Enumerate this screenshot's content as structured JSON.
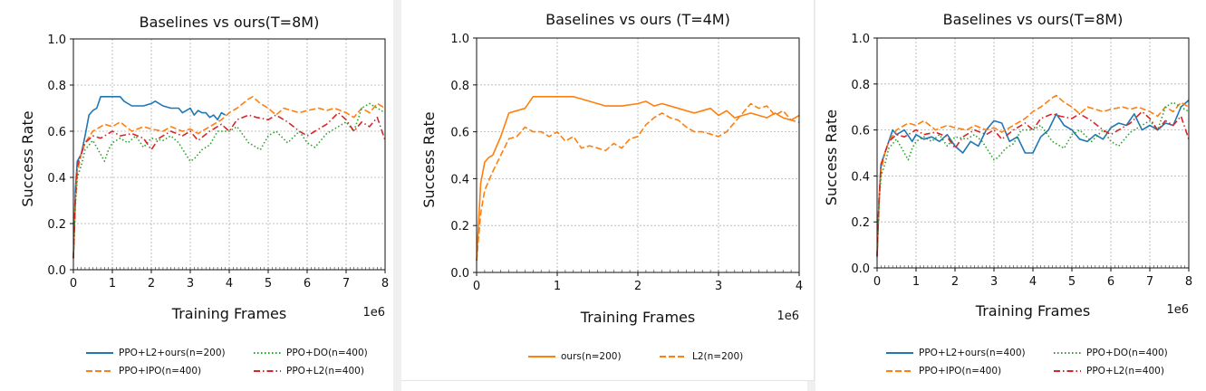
{
  "chart_data": [
    {
      "type": "line",
      "title": "Baselines vs ours(T=8M)",
      "xlabel": "Training Frames",
      "ylabel": "Success Rate",
      "x_exponent": "1e6",
      "xlim": [
        0,
        8
      ],
      "ylim": [
        0,
        1.0
      ],
      "xticks": [
        "0",
        "1",
        "2",
        "3",
        "4",
        "5",
        "6",
        "7",
        "8"
      ],
      "yticks": [
        "0.0",
        "0.2",
        "0.4",
        "0.6",
        "0.8",
        "1.0"
      ],
      "grid": true,
      "legend_position": "bottom",
      "series": [
        {
          "name": "PPO+L2+ours(n=200)",
          "color": "#1f77b4",
          "style": "solid",
          "x": [
            0,
            0.05,
            0.1,
            0.2,
            0.3,
            0.4,
            0.5,
            0.6,
            0.7,
            0.8,
            1.0,
            1.2,
            1.3,
            1.5,
            1.8,
            2.0,
            2.1,
            2.3,
            2.5,
            2.7,
            2.8,
            2.9,
            3.0,
            3.1,
            3.2,
            3.3,
            3.4,
            3.5,
            3.6,
            3.7,
            3.8,
            3.9
          ],
          "y": [
            0.05,
            0.35,
            0.47,
            0.5,
            0.58,
            0.67,
            0.69,
            0.7,
            0.75,
            0.75,
            0.75,
            0.75,
            0.73,
            0.71,
            0.71,
            0.72,
            0.73,
            0.71,
            0.7,
            0.7,
            0.68,
            0.69,
            0.7,
            0.67,
            0.69,
            0.68,
            0.68,
            0.66,
            0.67,
            0.65,
            0.68,
            0.67
          ]
        },
        {
          "name": "PPO+IPO(n=400)",
          "color": "#ff7f0e",
          "style": "dashed",
          "x": [
            0,
            0.05,
            0.1,
            0.2,
            0.3,
            0.5,
            0.7,
            0.8,
            1.0,
            1.2,
            1.5,
            1.8,
            2.0,
            2.3,
            2.5,
            2.8,
            3.0,
            3.2,
            3.5,
            3.8,
            4.0,
            4.2,
            4.5,
            4.6,
            4.8,
            5.0,
            5.2,
            5.4,
            5.6,
            5.8,
            6.0,
            6.3,
            6.5,
            6.7,
            7.0,
            7.2,
            7.4,
            7.6,
            7.8,
            8.0
          ],
          "y": [
            0.05,
            0.3,
            0.42,
            0.5,
            0.55,
            0.6,
            0.62,
            0.63,
            0.62,
            0.64,
            0.6,
            0.62,
            0.61,
            0.6,
            0.62,
            0.6,
            0.61,
            0.59,
            0.62,
            0.65,
            0.68,
            0.7,
            0.74,
            0.75,
            0.72,
            0.7,
            0.67,
            0.7,
            0.69,
            0.68,
            0.69,
            0.7,
            0.69,
            0.7,
            0.68,
            0.66,
            0.7,
            0.68,
            0.72,
            0.7
          ]
        },
        {
          "name": "PPO+DO(n=400)",
          "color": "#2ca02c",
          "style": "dotted",
          "x": [
            0,
            0.05,
            0.1,
            0.2,
            0.3,
            0.5,
            0.7,
            0.8,
            0.9,
            1.0,
            1.2,
            1.4,
            1.6,
            1.8,
            2.0,
            2.3,
            2.5,
            2.7,
            3.0,
            3.1,
            3.3,
            3.5,
            3.7,
            4.0,
            4.2,
            4.5,
            4.8,
            5.0,
            5.2,
            5.5,
            5.8,
            6.0,
            6.2,
            6.5,
            6.8,
            7.0,
            7.2,
            7.4,
            7.6,
            7.8,
            8.0
          ],
          "y": [
            0.05,
            0.28,
            0.4,
            0.45,
            0.52,
            0.56,
            0.5,
            0.47,
            0.52,
            0.55,
            0.57,
            0.55,
            0.58,
            0.53,
            0.57,
            0.56,
            0.58,
            0.55,
            0.47,
            0.48,
            0.52,
            0.54,
            0.6,
            0.6,
            0.62,
            0.55,
            0.52,
            0.58,
            0.6,
            0.55,
            0.6,
            0.55,
            0.53,
            0.59,
            0.62,
            0.64,
            0.6,
            0.7,
            0.72,
            0.7,
            0.68
          ]
        },
        {
          "name": "PPO+L2(n=400)",
          "color": "#d62728",
          "style": "dashdot",
          "x": [
            0,
            0.05,
            0.1,
            0.2,
            0.3,
            0.5,
            0.7,
            0.9,
            1.0,
            1.2,
            1.5,
            1.8,
            2.0,
            2.2,
            2.5,
            2.8,
            3.0,
            3.2,
            3.5,
            3.8,
            4.0,
            4.2,
            4.5,
            4.7,
            5.0,
            5.2,
            5.5,
            5.8,
            6.0,
            6.2,
            6.5,
            6.8,
            7.0,
            7.2,
            7.4,
            7.6,
            7.8,
            8.0
          ],
          "y": [
            0.05,
            0.3,
            0.45,
            0.5,
            0.55,
            0.58,
            0.57,
            0.59,
            0.6,
            0.58,
            0.59,
            0.57,
            0.52,
            0.57,
            0.6,
            0.58,
            0.6,
            0.56,
            0.6,
            0.63,
            0.6,
            0.65,
            0.67,
            0.66,
            0.65,
            0.67,
            0.64,
            0.6,
            0.58,
            0.6,
            0.63,
            0.68,
            0.65,
            0.6,
            0.64,
            0.62,
            0.66,
            0.56
          ]
        }
      ]
    },
    {
      "type": "line",
      "title": "Baselines vs ours (T=4M)",
      "xlabel": "Training Frames",
      "ylabel": "Success Rate",
      "x_exponent": "1e6",
      "xlim": [
        0,
        4
      ],
      "ylim": [
        0,
        1.0
      ],
      "xticks": [
        "0",
        "1",
        "2",
        "3",
        "4"
      ],
      "yticks": [
        "0.0",
        "0.2",
        "0.4",
        "0.6",
        "0.8",
        "1.0"
      ],
      "grid": true,
      "legend_position": "bottom",
      "series": [
        {
          "name": "ours(n=200)",
          "color": "#ff7f0e",
          "style": "solid",
          "x": [
            0,
            0.05,
            0.1,
            0.15,
            0.2,
            0.3,
            0.35,
            0.4,
            0.5,
            0.6,
            0.7,
            0.8,
            1.0,
            1.2,
            1.4,
            1.6,
            1.8,
            2.0,
            2.1,
            2.2,
            2.3,
            2.5,
            2.7,
            2.8,
            2.9,
            3.0,
            3.1,
            3.2,
            3.3,
            3.4,
            3.5,
            3.6,
            3.7,
            3.8,
            3.9,
            4.0
          ],
          "y": [
            0.05,
            0.38,
            0.47,
            0.49,
            0.5,
            0.58,
            0.63,
            0.68,
            0.69,
            0.7,
            0.75,
            0.75,
            0.75,
            0.75,
            0.73,
            0.71,
            0.71,
            0.72,
            0.73,
            0.71,
            0.72,
            0.7,
            0.68,
            0.69,
            0.7,
            0.67,
            0.69,
            0.66,
            0.67,
            0.68,
            0.67,
            0.66,
            0.68,
            0.66,
            0.65,
            0.67
          ]
        },
        {
          "name": "L2(n=200)",
          "color": "#ff7f0e",
          "style": "dashed",
          "x": [
            0,
            0.05,
            0.1,
            0.2,
            0.3,
            0.4,
            0.5,
            0.6,
            0.7,
            0.8,
            0.9,
            1.0,
            1.1,
            1.2,
            1.3,
            1.4,
            1.5,
            1.6,
            1.7,
            1.8,
            1.9,
            2.0,
            2.1,
            2.2,
            2.3,
            2.4,
            2.5,
            2.6,
            2.7,
            2.8,
            2.9,
            3.0,
            3.1,
            3.2,
            3.3,
            3.4,
            3.5,
            3.6,
            3.7,
            3.8,
            3.9,
            4.0
          ],
          "y": [
            0.05,
            0.25,
            0.35,
            0.43,
            0.5,
            0.57,
            0.58,
            0.62,
            0.6,
            0.6,
            0.58,
            0.6,
            0.56,
            0.58,
            0.53,
            0.54,
            0.53,
            0.52,
            0.55,
            0.53,
            0.57,
            0.58,
            0.63,
            0.66,
            0.68,
            0.66,
            0.65,
            0.62,
            0.6,
            0.6,
            0.59,
            0.58,
            0.6,
            0.64,
            0.68,
            0.72,
            0.7,
            0.71,
            0.67,
            0.69,
            0.65,
            0.64
          ]
        }
      ]
    },
    {
      "type": "line",
      "title": "Baselines vs ours(T=8M)",
      "xlabel": "Training Frames",
      "ylabel": "Success Rate",
      "x_exponent": "1e6",
      "xlim": [
        0,
        8
      ],
      "ylim": [
        0,
        1.0
      ],
      "xticks": [
        "0",
        "1",
        "2",
        "3",
        "4",
        "5",
        "6",
        "7",
        "8"
      ],
      "yticks": [
        "0.0",
        "0.2",
        "0.4",
        "0.6",
        "0.8",
        "1.0"
      ],
      "grid": true,
      "legend_position": "bottom",
      "series": [
        {
          "name": "PPO+L2+ours(n=400)",
          "color": "#1f77b4",
          "style": "solid",
          "x": [
            0,
            0.05,
            0.1,
            0.2,
            0.3,
            0.4,
            0.5,
            0.7,
            0.9,
            1.0,
            1.2,
            1.4,
            1.6,
            1.8,
            2.0,
            2.2,
            2.4,
            2.6,
            2.8,
            3.0,
            3.2,
            3.4,
            3.6,
            3.8,
            4.0,
            4.2,
            4.4,
            4.6,
            4.8,
            5.0,
            5.2,
            5.4,
            5.6,
            5.8,
            6.0,
            6.2,
            6.4,
            6.6,
            6.8,
            7.0,
            7.2,
            7.4,
            7.6,
            7.8,
            8.0
          ],
          "y": [
            0.05,
            0.3,
            0.45,
            0.5,
            0.55,
            0.6,
            0.58,
            0.6,
            0.55,
            0.58,
            0.56,
            0.57,
            0.55,
            0.58,
            0.53,
            0.5,
            0.55,
            0.53,
            0.6,
            0.64,
            0.63,
            0.55,
            0.57,
            0.5,
            0.5,
            0.57,
            0.6,
            0.67,
            0.62,
            0.6,
            0.56,
            0.55,
            0.58,
            0.56,
            0.61,
            0.63,
            0.62,
            0.67,
            0.6,
            0.62,
            0.6,
            0.63,
            0.62,
            0.7,
            0.73
          ]
        },
        {
          "name": "PPO+IPO(n=400)",
          "color": "#ff7f0e",
          "style": "dashed",
          "x": [
            0,
            0.05,
            0.1,
            0.2,
            0.3,
            0.5,
            0.7,
            0.8,
            1.0,
            1.2,
            1.5,
            1.8,
            2.0,
            2.3,
            2.5,
            2.8,
            3.0,
            3.2,
            3.5,
            3.8,
            4.0,
            4.2,
            4.5,
            4.6,
            4.8,
            5.0,
            5.2,
            5.4,
            5.6,
            5.8,
            6.0,
            6.3,
            6.5,
            6.7,
            7.0,
            7.2,
            7.4,
            7.6,
            7.8,
            8.0
          ],
          "y": [
            0.05,
            0.3,
            0.42,
            0.5,
            0.55,
            0.6,
            0.62,
            0.63,
            0.62,
            0.64,
            0.6,
            0.62,
            0.61,
            0.6,
            0.62,
            0.6,
            0.61,
            0.59,
            0.62,
            0.65,
            0.68,
            0.7,
            0.74,
            0.75,
            0.72,
            0.7,
            0.67,
            0.7,
            0.69,
            0.68,
            0.69,
            0.7,
            0.69,
            0.7,
            0.68,
            0.66,
            0.7,
            0.68,
            0.72,
            0.7
          ]
        },
        {
          "name": "PPO+DO(n=400)",
          "color": "#2ca02c",
          "style": "dotted",
          "x": [
            0,
            0.05,
            0.1,
            0.2,
            0.3,
            0.5,
            0.7,
            0.8,
            0.9,
            1.0,
            1.2,
            1.4,
            1.6,
            1.8,
            2.0,
            2.3,
            2.5,
            2.7,
            3.0,
            3.1,
            3.3,
            3.5,
            3.7,
            4.0,
            4.2,
            4.5,
            4.8,
            5.0,
            5.2,
            5.5,
            5.8,
            6.0,
            6.2,
            6.5,
            6.8,
            7.0,
            7.2,
            7.4,
            7.6,
            7.8,
            8.0
          ],
          "y": [
            0.05,
            0.28,
            0.4,
            0.45,
            0.52,
            0.56,
            0.5,
            0.47,
            0.52,
            0.55,
            0.57,
            0.55,
            0.58,
            0.53,
            0.57,
            0.56,
            0.58,
            0.55,
            0.47,
            0.48,
            0.52,
            0.54,
            0.6,
            0.6,
            0.62,
            0.55,
            0.52,
            0.58,
            0.6,
            0.55,
            0.6,
            0.55,
            0.53,
            0.59,
            0.62,
            0.64,
            0.6,
            0.7,
            0.72,
            0.7,
            0.68
          ]
        },
        {
          "name": "PPO+L2(n=400)",
          "color": "#d62728",
          "style": "dashdot",
          "x": [
            0,
            0.05,
            0.1,
            0.2,
            0.3,
            0.5,
            0.7,
            0.9,
            1.0,
            1.2,
            1.5,
            1.8,
            2.0,
            2.2,
            2.5,
            2.8,
            3.0,
            3.2,
            3.5,
            3.8,
            4.0,
            4.2,
            4.5,
            4.7,
            5.0,
            5.2,
            5.5,
            5.8,
            6.0,
            6.2,
            6.5,
            6.8,
            7.0,
            7.2,
            7.4,
            7.6,
            7.8,
            8.0
          ],
          "y": [
            0.05,
            0.3,
            0.45,
            0.5,
            0.55,
            0.58,
            0.57,
            0.59,
            0.6,
            0.58,
            0.59,
            0.57,
            0.52,
            0.57,
            0.6,
            0.58,
            0.6,
            0.56,
            0.6,
            0.63,
            0.6,
            0.65,
            0.67,
            0.66,
            0.65,
            0.67,
            0.64,
            0.6,
            0.58,
            0.6,
            0.63,
            0.68,
            0.65,
            0.6,
            0.64,
            0.62,
            0.66,
            0.56
          ]
        }
      ]
    }
  ]
}
